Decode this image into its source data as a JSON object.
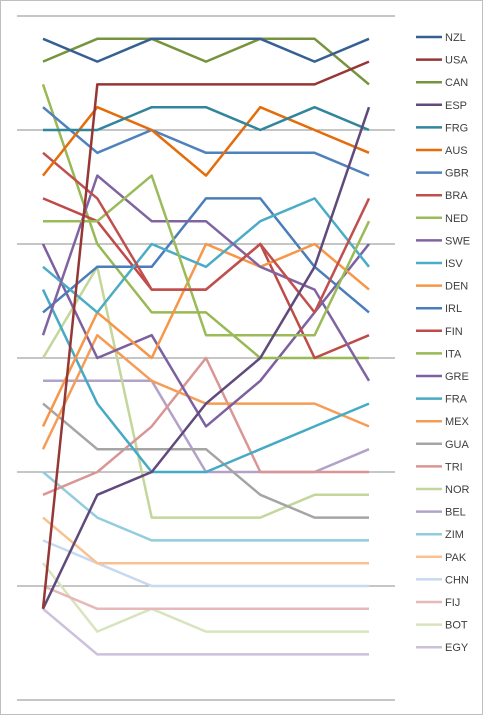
{
  "chart_data": {
    "type": "line",
    "title": "",
    "xlabel": "",
    "ylabel": "",
    "x": [
      1,
      2,
      3,
      4,
      5,
      6,
      7
    ],
    "ylim": [
      0,
      30
    ],
    "y_inverted": true,
    "grid": "horizontal",
    "legend_position": "right",
    "series": [
      {
        "name": "NZL",
        "color": "#376092",
        "values": [
          1,
          2,
          1,
          1,
          1,
          2,
          1
        ]
      },
      {
        "name": "USA",
        "color": "#953735",
        "values": [
          26,
          3,
          3,
          3,
          3,
          3,
          2
        ]
      },
      {
        "name": "CAN",
        "color": "#77933C",
        "values": [
          2,
          1,
          1,
          2,
          1,
          1,
          3
        ]
      },
      {
        "name": "ESP",
        "color": "#604A7B",
        "values": [
          26,
          21,
          20,
          17,
          15,
          11,
          4
        ]
      },
      {
        "name": "FRG",
        "color": "#31859C",
        "values": [
          5,
          5,
          4,
          4,
          5,
          4,
          5
        ]
      },
      {
        "name": "AUS",
        "color": "#E46C0A",
        "values": [
          7,
          4,
          5,
          7,
          4,
          5,
          6
        ]
      },
      {
        "name": "GBR",
        "color": "#4F81BD",
        "values": [
          4,
          6,
          5,
          6,
          6,
          6,
          7
        ]
      },
      {
        "name": "BRA",
        "color": "#C0504D",
        "values": [
          6,
          8,
          12,
          12,
          10,
          13,
          8
        ]
      },
      {
        "name": "NED",
        "color": "#9BBB59",
        "values": [
          9,
          9,
          7,
          14,
          14,
          14,
          9
        ]
      },
      {
        "name": "SWE",
        "color": "#8064A2",
        "values": [
          14,
          7,
          9,
          9,
          11,
          12,
          16
        ]
      },
      {
        "name": "ISV",
        "color": "#4BACC6",
        "values": [
          11,
          13,
          10,
          11,
          9,
          8,
          11
        ]
      },
      {
        "name": "DEN",
        "color": "#F79646",
        "values": [
          18,
          13,
          15,
          10,
          11,
          10,
          12
        ]
      },
      {
        "name": "IRL",
        "color": "#4A7EBB",
        "values": [
          13,
          11,
          11,
          8,
          8,
          11,
          13
        ]
      },
      {
        "name": "FIN",
        "color": "#BE4B48",
        "values": [
          8,
          9,
          12,
          12,
          10,
          15,
          14
        ]
      },
      {
        "name": "ITA",
        "color": "#98B954",
        "values": [
          3,
          10,
          13,
          13,
          15,
          15,
          15
        ]
      },
      {
        "name": "GRE",
        "color": "#7D60A0",
        "values": [
          10,
          15,
          14,
          18,
          16,
          13,
          10
        ]
      },
      {
        "name": "FRA",
        "color": "#46AAC5",
        "values": [
          12,
          17,
          20,
          20,
          19,
          18,
          17
        ]
      },
      {
        "name": "MEX",
        "color": "#F59D56",
        "values": [
          19,
          14,
          16,
          17,
          17,
          17,
          18
        ]
      },
      {
        "name": "GUA",
        "color": "#A5A5A5",
        "values": [
          17,
          19,
          19,
          19,
          21,
          22,
          22
        ]
      },
      {
        "name": "TRI",
        "color": "#D99694",
        "values": [
          21,
          20,
          18,
          15,
          20,
          20,
          20
        ]
      },
      {
        "name": "NOR",
        "color": "#C3D69B",
        "values": [
          15,
          11,
          22,
          22,
          22,
          21,
          21
        ]
      },
      {
        "name": "BEL",
        "color": "#B3A2C7",
        "values": [
          16,
          16,
          16,
          20,
          20,
          20,
          19
        ]
      },
      {
        "name": "ZIM",
        "color": "#93CDDD",
        "values": [
          20,
          22,
          23,
          23,
          23,
          23,
          23
        ]
      },
      {
        "name": "PAK",
        "color": "#FAC090",
        "values": [
          22,
          24,
          24,
          24,
          24,
          24,
          24
        ]
      },
      {
        "name": "CHN",
        "color": "#C6D9F1",
        "values": [
          23,
          24,
          25,
          25,
          25,
          25,
          25
        ]
      },
      {
        "name": "FIJ",
        "color": "#E6B9B8",
        "values": [
          25,
          26,
          26,
          26,
          26,
          26,
          26
        ]
      },
      {
        "name": "BOT",
        "color": "#D7E4BD",
        "values": [
          24,
          27,
          26,
          27,
          27,
          27,
          27
        ]
      },
      {
        "name": "EGY",
        "color": "#CCC1DA",
        "values": [
          26,
          28,
          28,
          28,
          28,
          28,
          28
        ]
      }
    ]
  }
}
